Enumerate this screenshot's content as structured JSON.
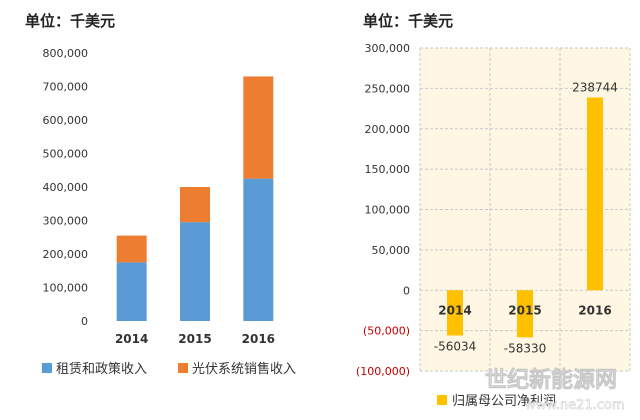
{
  "chart_data": [
    {
      "type": "bar",
      "stacked": true,
      "unit_label": "单位：千美元",
      "categories": [
        "2014",
        "2015",
        "2016"
      ],
      "series": [
        {
          "name": "租赁和政策收入",
          "color": "#5b9bd5",
          "values": [
            175000,
            295000,
            425000
          ]
        },
        {
          "name": "光伏系统销售收入",
          "color": "#ed7d31",
          "values": [
            80000,
            105000,
            305000
          ]
        }
      ],
      "ylim": [
        0,
        800000
      ],
      "yticks": [
        "0",
        "100,000",
        "200,000",
        "300,000",
        "400,000",
        "500,000",
        "600,000",
        "700,000",
        "800,000"
      ],
      "grid": false,
      "legend": "bottom"
    },
    {
      "type": "bar",
      "unit_label": "单位：千美元",
      "categories": [
        "2014",
        "2015",
        "2016"
      ],
      "series": [
        {
          "name": "归属母公司净利润",
          "color": "#ffc000",
          "values": [
            -56034,
            -58330,
            238744
          ]
        }
      ],
      "data_labels": [
        "-56034",
        "-58330",
        "238744"
      ],
      "ylim": [
        -100000,
        300000
      ],
      "yticks": [
        "(100,000)",
        "(50,000)",
        "0",
        "50,000",
        "100,000",
        "150,000",
        "200,000",
        "250,000",
        "300,000"
      ],
      "grid": true,
      "legend": "bottom"
    }
  ],
  "watermark": {
    "main": "世纪新能源网",
    "sub": "www.ne21.com"
  }
}
